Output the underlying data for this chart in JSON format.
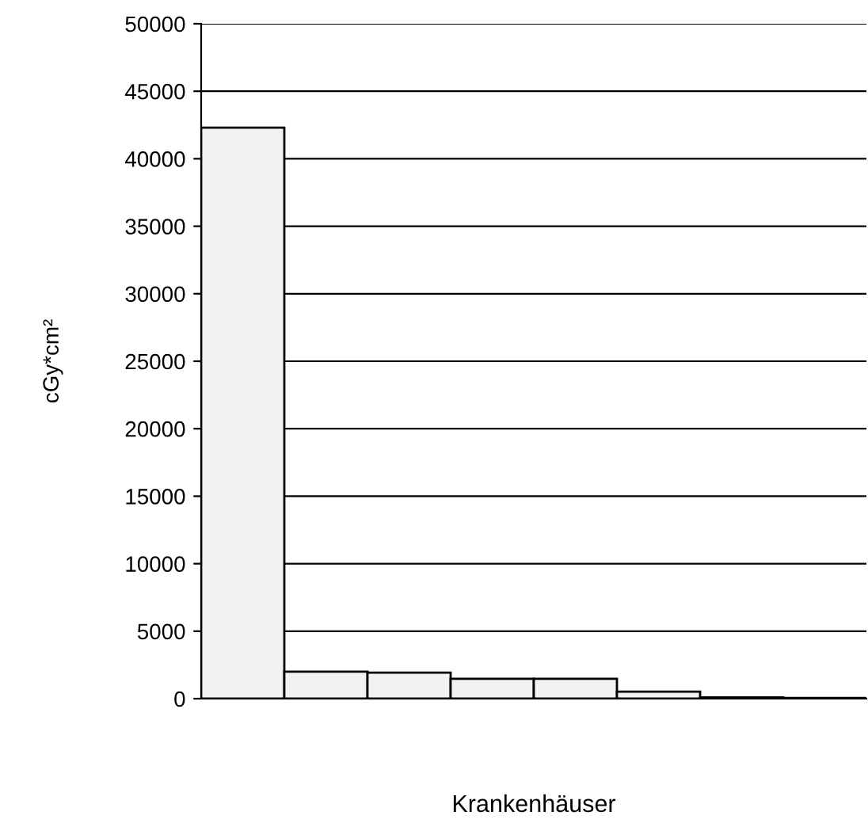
{
  "chart_data": {
    "type": "bar",
    "xlabel": "Krankenhäuser",
    "ylabel": "cGy*cm²",
    "categories": [
      null,
      null,
      null,
      null,
      null,
      null,
      null,
      null
    ],
    "values": [
      42300,
      2000,
      1930,
      1480,
      1480,
      520,
      100,
      50
    ],
    "color": "#f2f2f2",
    "ylim": [
      0,
      50000
    ],
    "yticks": [
      0,
      5000,
      10000,
      15000,
      20000,
      25000,
      30000,
      35000,
      40000,
      45000,
      50000
    ],
    "grid": "y"
  }
}
